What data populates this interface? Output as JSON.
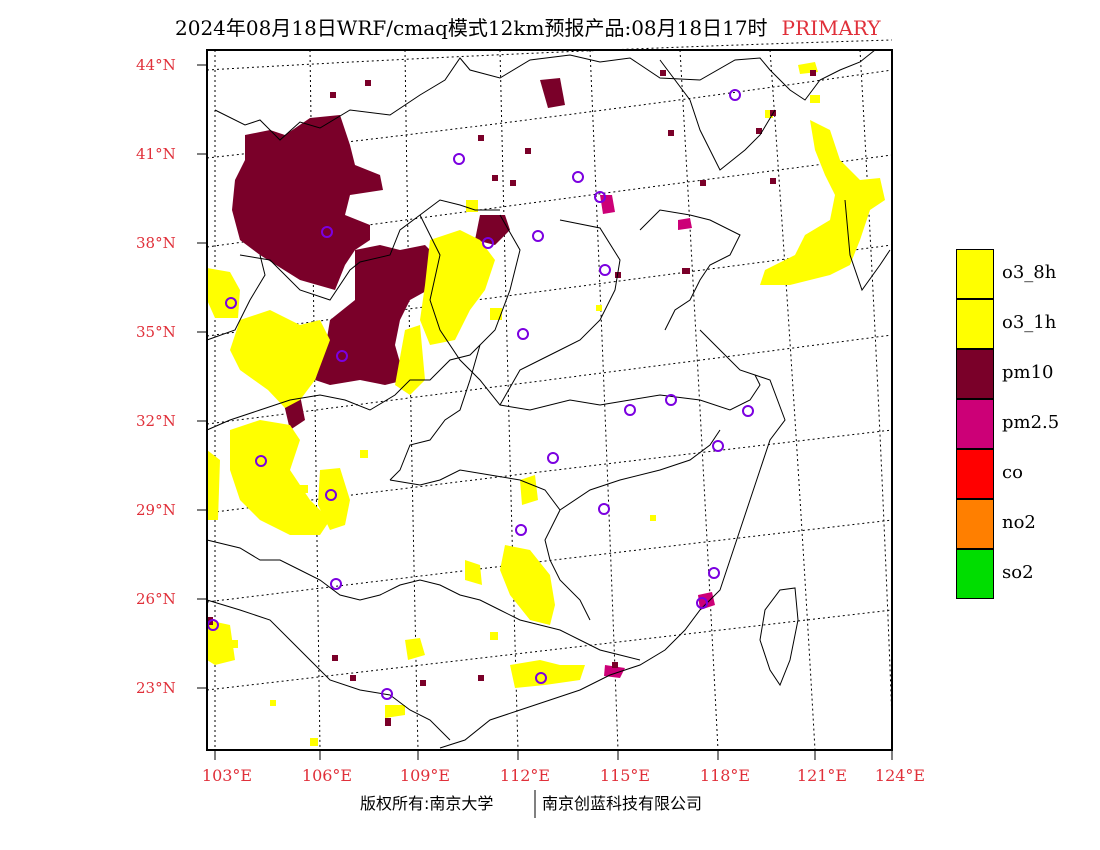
{
  "title": {
    "main": "2024年08月18日WRF/cmaq模式12km预报产品:08月18日17时",
    "tag": "PRIMARY"
  },
  "lat_labels": [
    "44°N",
    "41°N",
    "38°N",
    "35°N",
    "32°N",
    "29°N",
    "26°N",
    "23°N"
  ],
  "lon_labels": [
    "103°E",
    "106°E",
    "109°E",
    "112°E",
    "115°E",
    "118°E",
    "121°E",
    "124°E"
  ],
  "footer": {
    "left": "版权所有:南京大学",
    "right": "南京创蓝科技有限公司"
  },
  "legend": [
    {
      "label": "o3_8h",
      "color": "#ffff00"
    },
    {
      "label": "o3_1h",
      "color": "#ffff00"
    },
    {
      "label": "pm10",
      "color": "#7a0029"
    },
    {
      "label": "pm2.5",
      "color": "#cc0077"
    },
    {
      "label": "co",
      "color": "#ff0000"
    },
    {
      "label": "no2",
      "color": "#ff7f00"
    },
    {
      "label": "so2",
      "color": "#00dd00"
    }
  ],
  "colors": {
    "axis_label": "#e0303a",
    "o3": "#ffff00",
    "pm10": "#7a0029",
    "pm25": "#cc0077",
    "station": "#7b00e0"
  }
}
